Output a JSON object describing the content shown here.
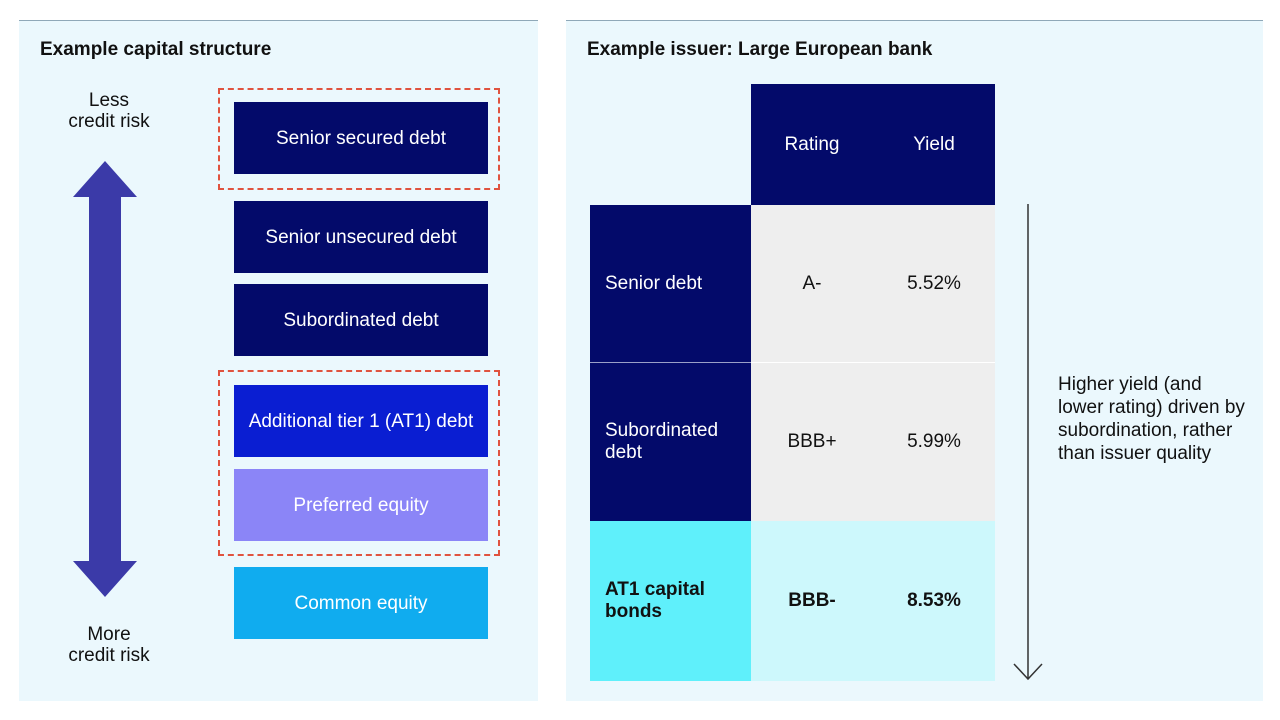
{
  "left": {
    "title": "Example capital structure",
    "top_label": "Less\ncredit risk",
    "bottom_label": "More\ncredit risk",
    "layers": [
      {
        "label": "Senior secured debt"
      },
      {
        "label": "Senior unsecured debt"
      },
      {
        "label": "Subordinated debt"
      },
      {
        "label": "Additional tier 1 (AT1) debt"
      },
      {
        "label": "Preferred equity"
      },
      {
        "label": "Common equity"
      }
    ],
    "colors": {
      "dark": "#030a6a",
      "blue": "#0a1ed2",
      "purple": "#8b85f7",
      "sky": "#10acef",
      "dash": "#e0533f",
      "arrow": "#3b3aa8"
    }
  },
  "right": {
    "title": "Example issuer: Large European bank",
    "headers": {
      "rating": "Rating",
      "yield": "Yield"
    },
    "rows": [
      {
        "name": "Senior debt",
        "rating": "A-",
        "yield": "5.52%"
      },
      {
        "name": "Subordinated debt",
        "rating": "BBB+",
        "yield": "5.99%"
      },
      {
        "name": "AT1 capital bonds",
        "rating": "BBB-",
        "yield": "8.53%"
      }
    ],
    "note": "Higher yield (and lower rating) driven by subordination, rather than issuer quality"
  }
}
